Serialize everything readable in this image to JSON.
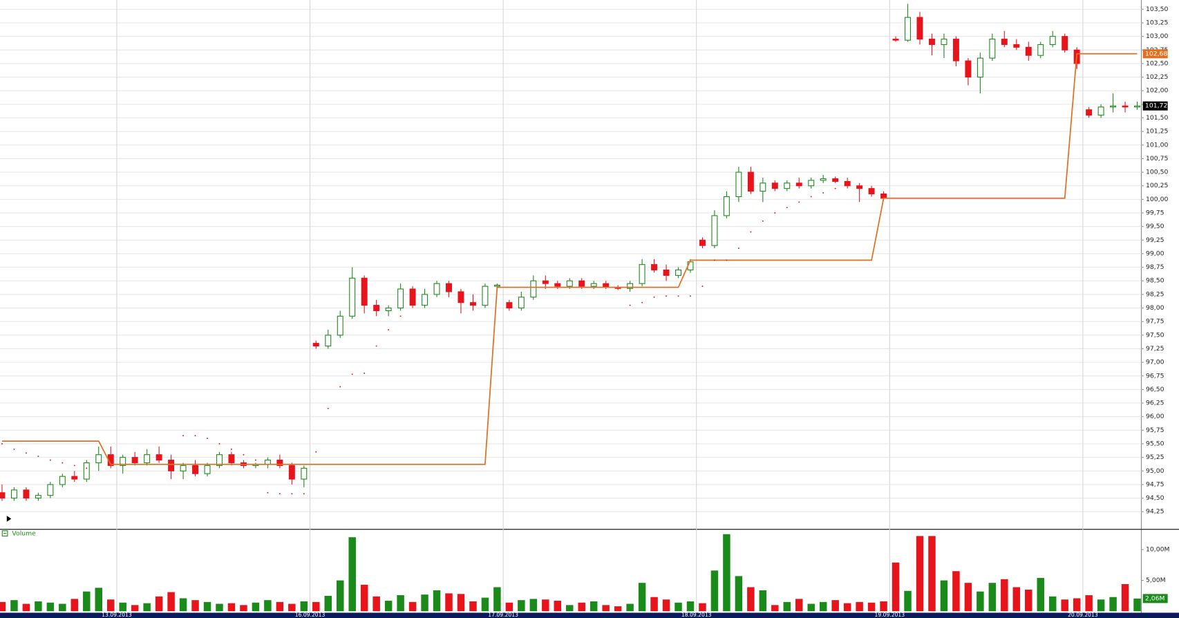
{
  "chart_data": {
    "type": "candlestick",
    "up_color": "#1a8a1a",
    "down_color": "#e8141c",
    "categories": [
      null,
      null,
      null,
      null,
      null,
      null,
      null,
      null,
      null,
      null,
      "13.09.2013",
      null,
      null,
      null,
      null,
      null,
      null,
      null,
      null,
      null,
      null,
      null,
      null,
      null,
      null,
      null,
      "16.09.2013",
      null,
      null,
      null,
      null,
      null,
      null,
      null,
      null,
      null,
      null,
      null,
      null,
      null,
      null,
      null,
      "17.09.2013",
      null,
      null,
      null,
      null,
      null,
      null,
      null,
      null,
      null,
      null,
      null,
      null,
      null,
      null,
      null,
      "18.09.2013",
      null,
      null,
      null,
      null,
      null,
      null,
      null,
      null,
      null,
      null,
      null,
      null,
      null,
      null,
      null,
      "19.09.2013",
      null,
      null,
      null,
      null,
      null,
      null,
      null,
      null,
      null,
      null,
      null,
      null,
      null,
      null,
      null,
      "20.09.2013",
      null,
      null,
      null,
      null
    ],
    "ohlc": [
      [
        94.6,
        94.75,
        94.45,
        94.5
      ],
      [
        94.5,
        94.7,
        94.45,
        94.65
      ],
      [
        94.65,
        94.7,
        94.45,
        94.5
      ],
      [
        94.5,
        94.6,
        94.45,
        94.55
      ],
      [
        94.55,
        94.8,
        94.5,
        94.75
      ],
      [
        94.75,
        94.95,
        94.7,
        94.9
      ],
      [
        94.9,
        95.0,
        94.8,
        94.85
      ],
      [
        94.85,
        95.2,
        94.8,
        95.15
      ],
      [
        95.15,
        95.45,
        95.0,
        95.3
      ],
      [
        95.3,
        95.45,
        95.05,
        95.1
      ],
      [
        95.1,
        95.3,
        94.95,
        95.25
      ],
      [
        95.25,
        95.35,
        95.1,
        95.15
      ],
      [
        95.15,
        95.4,
        95.1,
        95.3
      ],
      [
        95.3,
        95.45,
        95.15,
        95.2
      ],
      [
        95.2,
        95.3,
        94.85,
        95.0
      ],
      [
        95.0,
        95.15,
        94.85,
        95.1
      ],
      [
        95.1,
        95.2,
        94.9,
        94.95
      ],
      [
        94.95,
        95.15,
        94.9,
        95.1
      ],
      [
        95.1,
        95.35,
        95.05,
        95.3
      ],
      [
        95.3,
        95.35,
        95.1,
        95.15
      ],
      [
        95.15,
        95.2,
        95.05,
        95.1
      ],
      [
        95.1,
        95.15,
        95.05,
        95.12
      ],
      [
        95.12,
        95.25,
        95.05,
        95.2
      ],
      [
        95.2,
        95.3,
        95.05,
        95.1
      ],
      [
        95.1,
        95.15,
        94.75,
        94.85
      ],
      [
        94.85,
        95.1,
        94.7,
        95.05
      ],
      [
        97.35,
        97.4,
        97.25,
        97.3
      ],
      [
        97.3,
        97.6,
        97.25,
        97.5
      ],
      [
        97.5,
        97.95,
        97.45,
        97.85
      ],
      [
        97.85,
        98.75,
        97.8,
        98.55
      ],
      [
        98.55,
        98.6,
        97.9,
        98.05
      ],
      [
        98.05,
        98.15,
        97.85,
        97.95
      ],
      [
        97.95,
        98.05,
        97.85,
        98.0
      ],
      [
        98.0,
        98.45,
        97.95,
        98.35
      ],
      [
        98.35,
        98.4,
        98.0,
        98.05
      ],
      [
        98.05,
        98.35,
        98.0,
        98.25
      ],
      [
        98.25,
        98.5,
        98.2,
        98.45
      ],
      [
        98.45,
        98.5,
        98.2,
        98.3
      ],
      [
        98.3,
        98.35,
        97.9,
        98.1
      ],
      [
        98.1,
        98.25,
        97.95,
        98.05
      ],
      [
        98.05,
        98.45,
        98.0,
        98.4
      ],
      [
        98.4,
        98.45,
        98.35,
        98.42
      ],
      [
        98.1,
        98.15,
        97.95,
        98.0
      ],
      [
        98.0,
        98.3,
        97.95,
        98.2
      ],
      [
        98.2,
        98.6,
        98.15,
        98.5
      ],
      [
        98.5,
        98.6,
        98.35,
        98.45
      ],
      [
        98.45,
        98.5,
        98.35,
        98.4
      ],
      [
        98.4,
        98.55,
        98.35,
        98.5
      ],
      [
        98.5,
        98.55,
        98.35,
        98.4
      ],
      [
        98.4,
        98.5,
        98.35,
        98.45
      ],
      [
        98.45,
        98.5,
        98.35,
        98.38
      ],
      [
        98.38,
        98.42,
        98.33,
        98.36
      ],
      [
        98.36,
        98.5,
        98.3,
        98.45
      ],
      [
        98.45,
        98.9,
        98.4,
        98.8
      ],
      [
        98.8,
        98.9,
        98.65,
        98.7
      ],
      [
        98.7,
        98.8,
        98.5,
        98.6
      ],
      [
        98.6,
        98.75,
        98.55,
        98.7
      ],
      [
        98.7,
        98.9,
        98.65,
        98.85
      ],
      [
        99.25,
        99.3,
        99.1,
        99.15
      ],
      [
        99.15,
        99.8,
        99.1,
        99.7
      ],
      [
        99.7,
        100.15,
        99.65,
        100.05
      ],
      [
        100.05,
        100.6,
        99.95,
        100.5
      ],
      [
        100.5,
        100.6,
        100.1,
        100.15
      ],
      [
        100.15,
        100.4,
        99.95,
        100.3
      ],
      [
        100.3,
        100.35,
        100.15,
        100.2
      ],
      [
        100.2,
        100.35,
        100.15,
        100.3
      ],
      [
        100.3,
        100.4,
        100.2,
        100.25
      ],
      [
        100.25,
        100.4,
        100.2,
        100.35
      ],
      [
        100.35,
        100.45,
        100.3,
        100.38
      ],
      [
        100.38,
        100.42,
        100.3,
        100.33
      ],
      [
        100.33,
        100.4,
        100.2,
        100.25
      ],
      [
        100.25,
        100.3,
        99.95,
        100.2
      ],
      [
        100.2,
        100.25,
        100.05,
        100.1
      ],
      [
        100.1,
        100.15,
        100.0,
        100.02
      ],
      [
        102.95,
        103.0,
        102.9,
        102.93
      ],
      [
        102.93,
        103.6,
        102.9,
        103.35
      ],
      [
        103.35,
        103.45,
        102.85,
        102.95
      ],
      [
        102.95,
        103.05,
        102.65,
        102.85
      ],
      [
        102.85,
        103.05,
        102.6,
        102.95
      ],
      [
        102.95,
        103.0,
        102.45,
        102.55
      ],
      [
        102.55,
        102.6,
        102.1,
        102.25
      ],
      [
        102.25,
        102.7,
        101.95,
        102.6
      ],
      [
        102.6,
        103.05,
        102.55,
        102.95
      ],
      [
        102.95,
        103.1,
        102.8,
        102.85
      ],
      [
        102.85,
        102.95,
        102.75,
        102.8
      ],
      [
        102.8,
        102.9,
        102.55,
        102.65
      ],
      [
        102.65,
        102.9,
        102.6,
        102.85
      ],
      [
        102.85,
        103.1,
        102.8,
        103.0
      ],
      [
        103.0,
        103.05,
        102.7,
        102.75
      ],
      [
        102.75,
        102.8,
        102.4,
        102.5
      ],
      [
        101.65,
        101.7,
        101.5,
        101.55
      ],
      [
        101.55,
        101.75,
        101.5,
        101.7
      ],
      [
        101.7,
        101.95,
        101.6,
        101.72
      ],
      [
        101.72,
        101.8,
        101.6,
        101.7
      ],
      [
        101.7,
        101.8,
        101.65,
        101.72
      ]
    ],
    "stop_line": {
      "color": "#e07020",
      "values": [
        95.55,
        95.55,
        95.55,
        95.55,
        95.55,
        95.55,
        95.55,
        95.55,
        95.55,
        95.12,
        95.12,
        95.12,
        95.12,
        95.12,
        95.12,
        95.12,
        95.12,
        95.12,
        95.12,
        95.12,
        95.12,
        95.12,
        95.12,
        95.12,
        95.12,
        95.12,
        95.12,
        95.12,
        95.12,
        95.12,
        95.12,
        95.12,
        95.12,
        95.12,
        95.12,
        95.12,
        95.12,
        95.12,
        95.12,
        95.12,
        95.12,
        98.38,
        98.38,
        98.38,
        98.38,
        98.38,
        98.38,
        98.38,
        98.38,
        98.38,
        98.38,
        98.38,
        98.38,
        98.38,
        98.38,
        98.38,
        98.38,
        98.88,
        98.88,
        98.88,
        98.88,
        98.88,
        98.88,
        98.88,
        98.88,
        98.88,
        98.88,
        98.88,
        98.88,
        98.88,
        98.88,
        98.88,
        98.88,
        100.02,
        100.02,
        100.02,
        100.02,
        100.02,
        100.02,
        100.02,
        100.02,
        100.02,
        100.02,
        100.02,
        100.02,
        100.02,
        100.02,
        100.02,
        100.02,
        102.68,
        102.68,
        102.68,
        102.68,
        102.68,
        102.68
      ]
    },
    "sar": {
      "color": "#e8141c",
      "values": [
        95.5,
        95.4,
        95.33,
        95.27,
        95.2,
        95.15,
        95.1,
        95.05,
        null,
        null,
        null,
        null,
        null,
        null,
        null,
        95.65,
        95.65,
        95.6,
        95.5,
        95.4,
        95.3,
        95.2,
        94.6,
        94.58,
        94.58,
        94.58,
        95.35,
        96.15,
        96.55,
        96.78,
        96.8,
        97.3,
        97.6,
        97.85,
        null,
        null,
        null,
        null,
        null,
        null,
        null,
        null,
        null,
        null,
        null,
        null,
        null,
        null,
        null,
        null,
        null,
        null,
        98.05,
        98.1,
        98.2,
        98.22,
        98.22,
        98.22,
        98.4,
        98.88,
        98.88,
        99.1,
        99.4,
        99.6,
        99.75,
        99.85,
        99.95,
        100.05,
        100.12,
        100.2,
        null,
        null,
        null,
        null,
        null,
        null,
        null,
        null,
        null,
        null,
        null,
        null,
        null,
        null,
        null,
        null,
        null,
        null,
        null,
        null,
        null,
        null,
        null,
        null,
        null,
        null
      ]
    },
    "ylim": [
      93.94,
      103.67
    ],
    "yticks": [
      {
        "value": 94.25,
        "label": "94,25"
      },
      {
        "value": 94.5,
        "label": "94,50"
      },
      {
        "value": 94.75,
        "label": "94,75"
      },
      {
        "value": 95,
        "label": "95,00"
      },
      {
        "value": 95.25,
        "label": "95,25"
      },
      {
        "value": 95.5,
        "label": "95,50"
      },
      {
        "value": 95.75,
        "label": "95,75"
      },
      {
        "value": 96,
        "label": "96,00"
      },
      {
        "value": 96.25,
        "label": "96,25"
      },
      {
        "value": 96.5,
        "label": "96,50"
      },
      {
        "value": 96.75,
        "label": "96,75"
      },
      {
        "value": 97,
        "label": "97,00"
      },
      {
        "value": 97.25,
        "label": "97,25"
      },
      {
        "value": 97.5,
        "label": "97,50"
      },
      {
        "value": 97.75,
        "label": "97,75"
      },
      {
        "value": 98,
        "label": "98,00"
      },
      {
        "value": 98.25,
        "label": "98,25"
      },
      {
        "value": 98.5,
        "label": "98,50"
      },
      {
        "value": 98.75,
        "label": "98,75"
      },
      {
        "value": 99,
        "label": "99,00"
      },
      {
        "value": 99.25,
        "label": "99,25"
      },
      {
        "value": 99.5,
        "label": "99,50"
      },
      {
        "value": 99.75,
        "label": "99,75"
      },
      {
        "value": 100,
        "label": "100,00"
      },
      {
        "value": 100.25,
        "label": "100,25"
      },
      {
        "value": 100.5,
        "label": "100,50"
      },
      {
        "value": 100.75,
        "label": "100,75"
      },
      {
        "value": 101,
        "label": "101,00"
      },
      {
        "value": 101.25,
        "label": "101,25"
      },
      {
        "value": 101.5,
        "label": "101,50"
      },
      {
        "value": 101.75,
        "label": "101,75"
      },
      {
        "value": 102,
        "label": "102,00"
      },
      {
        "value": 102.25,
        "label": "102,25"
      },
      {
        "value": 102.5,
        "label": "102,50"
      },
      {
        "value": 102.75,
        "label": "102,75"
      },
      {
        "value": 103,
        "label": "103,00"
      },
      {
        "value": 103.25,
        "label": "103,25"
      },
      {
        "value": 103.5,
        "label": "103,50"
      }
    ],
    "last_labels": [
      {
        "value": 102.68,
        "label": "102,68",
        "color": "#e07020"
      },
      {
        "value": 101.72,
        "label": "101,72",
        "color": "#000000"
      }
    ],
    "volume": {
      "title": "Volume",
      "values": [
        1.5,
        1.8,
        1.2,
        1.6,
        1.4,
        1.2,
        2.0,
        3.2,
        3.8,
        1.9,
        1.4,
        1.0,
        1.3,
        2.4,
        3.1,
        2.1,
        1.8,
        1.5,
        1.2,
        1.3,
        1.0,
        1.4,
        1.8,
        1.5,
        1.2,
        1.6,
        1.5,
        2.5,
        5.0,
        12.0,
        4.3,
        2.4,
        1.7,
        2.6,
        1.5,
        2.7,
        3.4,
        2.9,
        2.8,
        1.6,
        2.2,
        3.9,
        1.4,
        1.8,
        2.0,
        1.9,
        1.7,
        1.0,
        1.4,
        1.6,
        1.0,
        0.8,
        1.2,
        4.6,
        2.3,
        1.9,
        1.4,
        1.6,
        1.3,
        6.6,
        12.5,
        5.7,
        3.9,
        3.4,
        1.0,
        1.5,
        2.0,
        1.2,
        1.5,
        1.8,
        1.3,
        1.5,
        1.4,
        1.6,
        7.9,
        3.3,
        12.2,
        12.2,
        5.0,
        6.5,
        4.6,
        3.2,
        4.6,
        5.2,
        3.9,
        3.5,
        5.4,
        2.4,
        1.9,
        2.1,
        2.6,
        1.9,
        2.3,
        4.4,
        2.06
      ],
      "ylim": [
        0,
        13.17
      ],
      "yticks": [
        {
          "value": 5,
          "label": "5,00M"
        },
        {
          "value": 10,
          "label": "10,00M"
        }
      ],
      "last_label": {
        "value": 2.06,
        "label": "2,06M",
        "color": "#1a8a1a"
      }
    }
  }
}
